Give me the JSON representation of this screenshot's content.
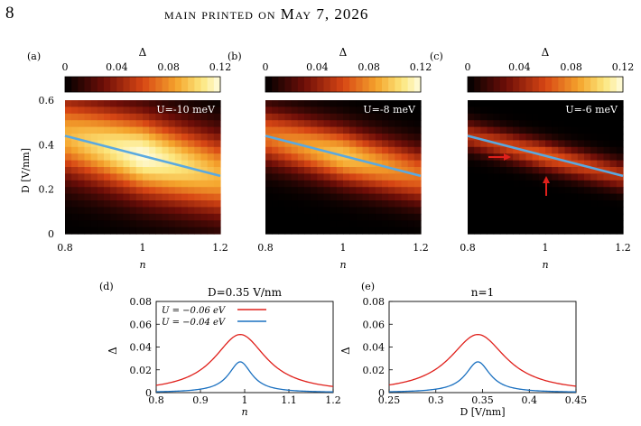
{
  "header": {
    "page_number": "8",
    "running_title": "main   printed on May 7, 2026"
  },
  "colorbar": {
    "label": "Δ",
    "ticks": [
      "0",
      "0.04",
      "0.08",
      "0.12"
    ],
    "min": 0,
    "max": 0.12
  },
  "heatmaps": [
    {
      "panel": "(a)",
      "annotation": "U=-10 meV",
      "center_n": 1.0,
      "width": 0.19,
      "amp": 1.0
    },
    {
      "panel": "(b)",
      "annotation": "U=-8 meV",
      "center_n": 1.0,
      "width": 0.13,
      "amp": 0.8
    },
    {
      "panel": "(c)",
      "annotation": "U=-6 meV",
      "center_n": 1.0,
      "width": 0.07,
      "amp": 0.55
    }
  ],
  "heatmap_axes": {
    "ylabel": "D [V/nm]",
    "xlabel": "n",
    "xticks": [
      "0.8",
      "1",
      "1.2"
    ],
    "yticks": [
      "0",
      "0.2",
      "0.4",
      "0.6"
    ],
    "xlim": [
      0.8,
      1.2
    ],
    "ylim": [
      0,
      0.6
    ],
    "line": {
      "x": [
        0.8,
        1.2
      ],
      "y": [
        0.44,
        0.26
      ],
      "color": "#5aa9e0"
    }
  },
  "chart_data": [
    {
      "type": "line",
      "panel": "(d)",
      "title": "D=0.35 V/nm",
      "xlabel": "n",
      "ylabel": "Δ",
      "xlim": [
        0.8,
        1.2
      ],
      "ylim": [
        0,
        0.08
      ],
      "xticks": [
        "0.8",
        "0.9",
        "1",
        "1.1",
        "1.2"
      ],
      "yticks": [
        "0",
        "0.02",
        "0.04",
        "0.06",
        "0.08"
      ],
      "series": [
        {
          "name": "U = −0.06 eV",
          "color": "#e0201b",
          "x0": 0.99,
          "amp": 0.051,
          "width": 0.072,
          "tail": 0.0
        },
        {
          "name": "U = −0.04 eV",
          "color": "#1a70c0",
          "x0": 0.99,
          "amp": 0.027,
          "width": 0.032,
          "tail": 0.0
        }
      ]
    },
    {
      "type": "line",
      "panel": "(e)",
      "title": "n=1",
      "xlabel": "D [V/nm]",
      "ylabel": "Δ",
      "xlim": [
        0.25,
        0.45
      ],
      "ylim": [
        0,
        0.08
      ],
      "xticks": [
        "0.25",
        "0.3",
        "0.35",
        "0.4",
        "0.45"
      ],
      "yticks": [
        "0",
        "0.02",
        "0.04",
        "0.06",
        "0.08"
      ],
      "series": [
        {
          "color": "#e0201b",
          "x0": 0.345,
          "amp": 0.051,
          "width": 0.037,
          "tail": 0.0
        },
        {
          "color": "#1a70c0",
          "x0": 0.345,
          "amp": 0.027,
          "width": 0.016,
          "tail": 0.0
        }
      ]
    }
  ],
  "arrows": {
    "color": "#e0201b"
  }
}
